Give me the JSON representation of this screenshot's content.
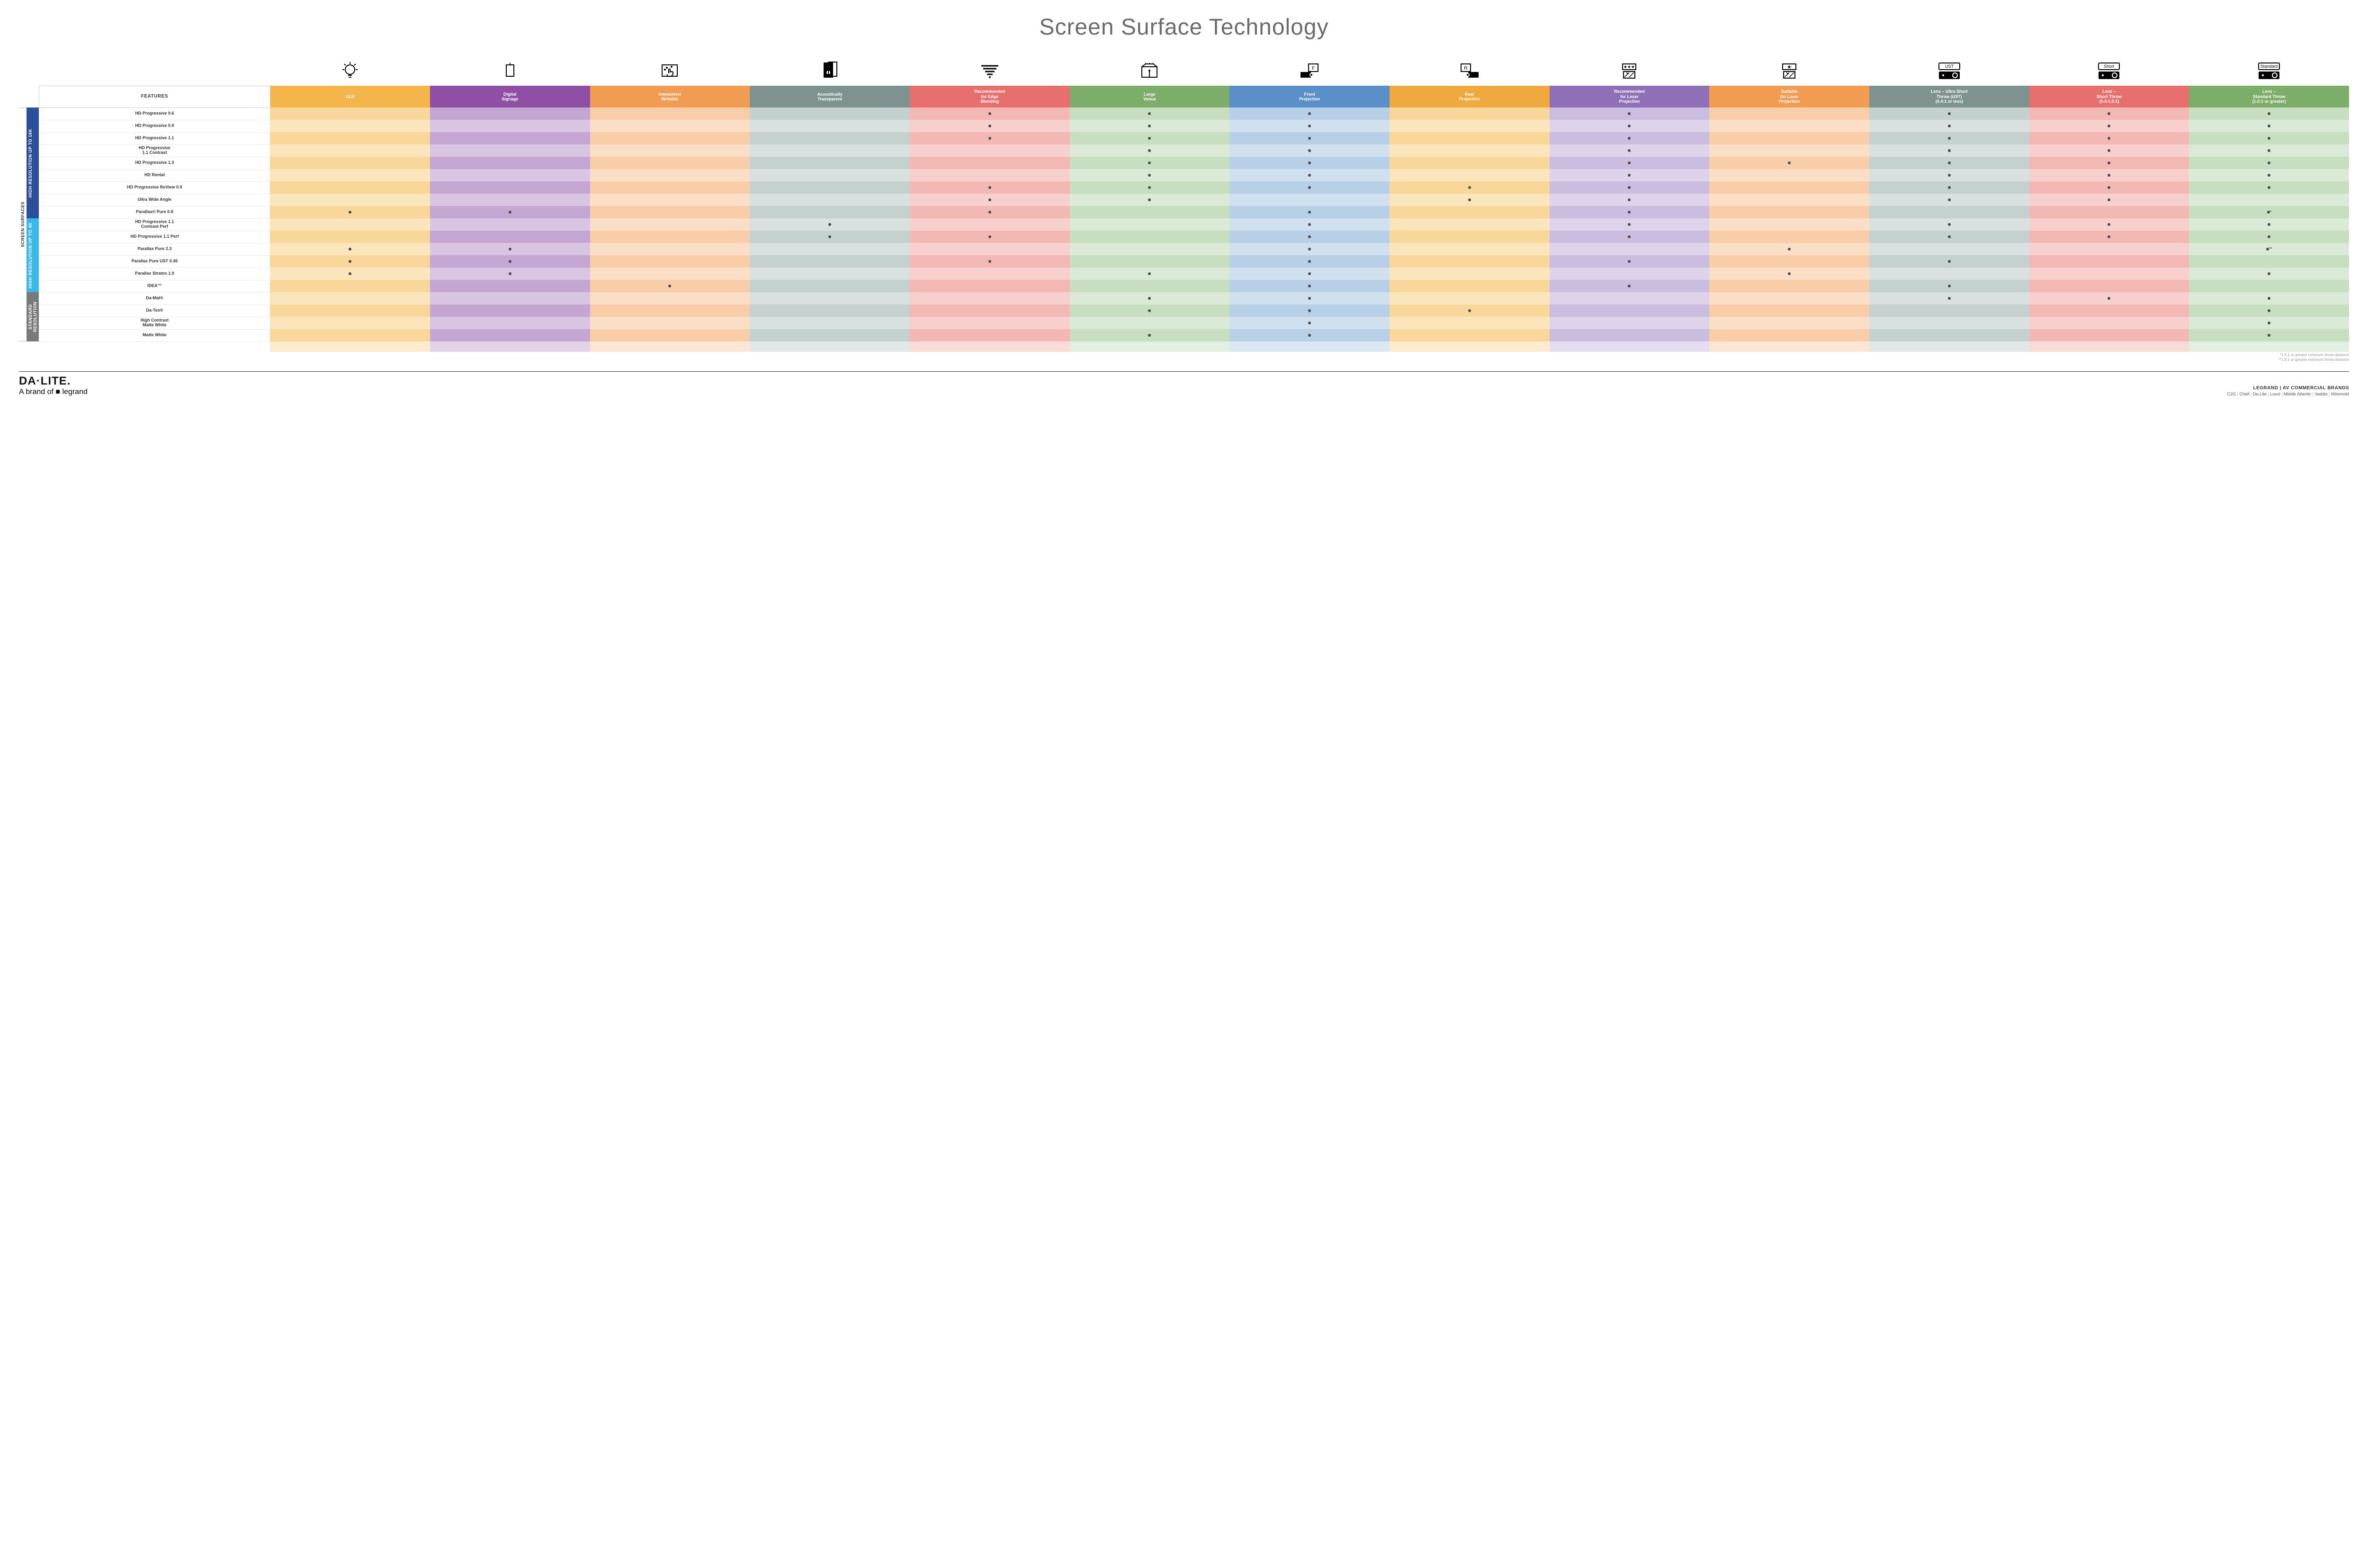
{
  "title": "Screen Surface Technology",
  "features_label": "FEATURES",
  "columns": [
    {
      "key": "alr",
      "label": "ALR",
      "icon": "bulb",
      "color": "#f4b64a",
      "alt": "#f9d79a"
    },
    {
      "key": "signage",
      "label": "Digital\nSignage",
      "icon": "signage",
      "color": "#8e4fa5",
      "alt": "#c4a6d2"
    },
    {
      "key": "interactive",
      "label": "Interactive/\nWritable",
      "icon": "touch",
      "color": "#f29b53",
      "alt": "#f8cda7"
    },
    {
      "key": "acoustic",
      "label": "Acoustically\nTransparent",
      "icon": "speaker",
      "color": "#7e9390",
      "alt": "#c5d1cf"
    },
    {
      "key": "edge",
      "label": "Recommended\nfor Edge\nBlending",
      "icon": "blend",
      "color": "#e76f6d",
      "alt": "#f3b7b4"
    },
    {
      "key": "large",
      "label": "Large\nVenue",
      "icon": "venue",
      "color": "#7cae6a",
      "alt": "#c7dec0"
    },
    {
      "key": "front",
      "label": "Front\nProjection",
      "icon": "front",
      "color": "#5a8fc8",
      "alt": "#b7cfe7"
    },
    {
      "key": "rear",
      "label": "Rear\nProjection",
      "icon": "rear",
      "color": "#f0a93e",
      "alt": "#f9d79a"
    },
    {
      "key": "reclaser",
      "label": "Recommended\nfor Laser\nProjection",
      "icon": "laser-rec",
      "color": "#8e6fb8",
      "alt": "#cbbde0"
    },
    {
      "key": "suitlaser",
      "label": "Suitable\nfor Laser\nProjection",
      "icon": "laser-suit",
      "color": "#f29b53",
      "alt": "#f8cda7"
    },
    {
      "key": "ust",
      "label": "Lens – Ultra Short\nThrow (UST)\n(0.4:1 or less)",
      "icon": "proj-ust",
      "color": "#7e9390",
      "alt": "#c5d1cf"
    },
    {
      "key": "short",
      "label": "Lens –\nShort Throw\n(0.4-1.0:1)",
      "icon": "proj-short",
      "color": "#e76f6d",
      "alt": "#f3b7b4"
    },
    {
      "key": "std",
      "label": "Lens –\nStandard Throw\n(1.0:1 or greater)",
      "icon": "proj-std",
      "color": "#7cae6a",
      "alt": "#c7dec0"
    }
  ],
  "groups": [
    {
      "key": "g16k",
      "label": "HIGH RESOLUTION UP TO 16K",
      "color": "#2d4f9b",
      "rows": 9
    },
    {
      "key": "g4k",
      "label": "HIGH RESOLUTION UP TO 4K",
      "color": "#3ab8e8",
      "rows": 6
    },
    {
      "key": "gstd",
      "label": "STANDARD\nRESOLUTION",
      "color": "#7a7a7a",
      "rows": 4
    }
  ],
  "side_label": "SCREEN SURFACES",
  "rows": [
    {
      "g": "g16k",
      "label": "HD Progressive 0.6",
      "cells": {
        "edge": "•",
        "large": "•",
        "front": "•",
        "reclaser": "•",
        "ust": "•",
        "short": "•",
        "std": "•"
      }
    },
    {
      "g": "g16k",
      "label": "HD Progressive 0.9",
      "cells": {
        "edge": "•",
        "large": "•",
        "front": "•",
        "reclaser": "•",
        "ust": "•",
        "short": "•",
        "std": "•"
      }
    },
    {
      "g": "g16k",
      "label": "HD Progressive 1.1",
      "cells": {
        "edge": "•",
        "large": "•",
        "front": "•",
        "reclaser": "•",
        "ust": "•",
        "short": "•",
        "std": "•"
      }
    },
    {
      "g": "g16k",
      "label": "HD Progressive\n1.1 Contrast",
      "cells": {
        "large": "•",
        "front": "•",
        "reclaser": "•",
        "ust": "•",
        "short": "•",
        "std": "•"
      }
    },
    {
      "g": "g16k",
      "label": "HD Progressive 1.3",
      "cells": {
        "large": "•",
        "front": "•",
        "reclaser": "•",
        "suitlaser": "•",
        "ust": "•",
        "short": "•",
        "std": "•"
      }
    },
    {
      "g": "g16k",
      "label": "HD Rental",
      "cells": {
        "large": "•",
        "front": "•",
        "reclaser": "•",
        "ust": "•",
        "short": "•",
        "std": "•"
      }
    },
    {
      "g": "g16k",
      "label": "HD Progressive ReView 0.9",
      "cells": {
        "edge": "•",
        "large": "•",
        "front": "•",
        "rear": "•",
        "reclaser": "•",
        "ust": "•",
        "short": "•",
        "std": "•"
      }
    },
    {
      "g": "g16k",
      "label": "Ultra Wide Angle",
      "cells": {
        "edge": "•",
        "large": "•",
        "rear": "•",
        "reclaser": "•",
        "ust": "•",
        "short": "•"
      }
    },
    {
      "g": "g16k",
      "label": "Parallax® Pure 0.8",
      "cells": {
        "alr": "•",
        "signage": "•",
        "edge": "•",
        "front": "•",
        "reclaser": "•",
        "std": "•*"
      }
    },
    {
      "g": "g4k",
      "label": "HD Progressive 1.1\nContrast Perf",
      "cells": {
        "acoustic": "•",
        "front": "•",
        "reclaser": "•",
        "ust": "•",
        "short": "•",
        "std": "•"
      }
    },
    {
      "g": "g4k",
      "label": "HD Progressive 1.1 Perf",
      "cells": {
        "acoustic": "•",
        "edge": "•",
        "front": "•",
        "reclaser": "•",
        "ust": "•",
        "short": "•",
        "std": "•"
      }
    },
    {
      "g": "g4k",
      "label": "Parallax Pure 2.3",
      "cells": {
        "alr": "•",
        "signage": "•",
        "front": "•",
        "suitlaser": "•",
        "std": "•**"
      }
    },
    {
      "g": "g4k",
      "label": "Parallax Pure UST 0.45",
      "cells": {
        "alr": "•",
        "signage": "•",
        "edge": "•",
        "front": "•",
        "reclaser": "•",
        "ust": "•"
      }
    },
    {
      "g": "g4k",
      "label": "Parallax Stratos 1.0",
      "cells": {
        "alr": "•",
        "signage": "•",
        "large": "•",
        "front": "•",
        "suitlaser": "•",
        "std": "•"
      }
    },
    {
      "g": "g4k",
      "label": "IDEA™",
      "cells": {
        "interactive": "•",
        "front": "•",
        "reclaser": "•",
        "ust": "•"
      }
    },
    {
      "g": "gstd",
      "label": "Da-Mat®",
      "cells": {
        "large": "•",
        "front": "•",
        "ust": "•",
        "short": "•",
        "std": "•"
      }
    },
    {
      "g": "gstd",
      "label": "Da-Tex®",
      "cells": {
        "large": "•",
        "front": "•",
        "rear": "•",
        "std": "•"
      }
    },
    {
      "g": "gstd",
      "label": "High Contrast\nMatte White",
      "cells": {
        "front": "•",
        "std": "•"
      }
    },
    {
      "g": "gstd",
      "label": "Matte White",
      "cells": {
        "large": "•",
        "front": "•",
        "std": "•"
      }
    }
  ],
  "footnotes": [
    "*1.5:1 or greater minimum throw distance",
    "**1.8:1 or greater minimum throw distance"
  ],
  "footer": {
    "logo": "DA·LITE.",
    "logo_sub_pre": "A brand of ",
    "logo_sub_brand": "legrand",
    "brands_header": "LEGRAND | AV COMMERCIAL BRANDS",
    "brands": [
      "C2G",
      "Chief",
      "Da-Lite",
      "Luxul",
      "Middle Atlantic",
      "Vaddio",
      "Wiremold"
    ]
  },
  "row_label_width_pct": 10
}
